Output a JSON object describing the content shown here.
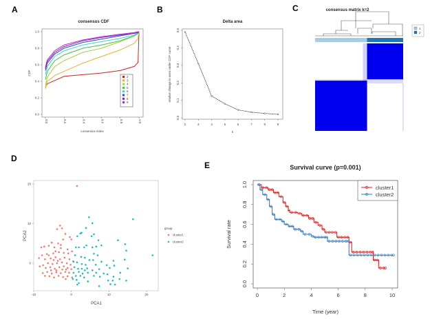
{
  "panel_labels": [
    "A",
    "B",
    "C",
    "D",
    "E"
  ],
  "chart_data": [
    {
      "panel": "A",
      "type": "line",
      "title": "consensus CDF",
      "xlabel": "consensus index",
      "ylabel": "CDF",
      "xlim": [
        0,
        1
      ],
      "ylim": [
        0,
        1
      ],
      "xticks": [
        "0.0",
        "0.2",
        "0.4",
        "0.6",
        "0.8",
        "1.0"
      ],
      "yticks": [
        "0.0",
        "0.2",
        "0.4",
        "0.6",
        "0.8",
        "1.0"
      ],
      "legend_placement": "bottom-right",
      "x": [
        0,
        0.02,
        0.1,
        0.2,
        0.4,
        0.6,
        0.8,
        0.95,
        0.99,
        1.0
      ],
      "series": [
        {
          "name": "2",
          "color": "#cc2222",
          "values": [
            0.33,
            0.37,
            0.41,
            0.46,
            0.48,
            0.5,
            0.53,
            0.58,
            0.63,
            1.0
          ]
        },
        {
          "name": "3",
          "color": "#e8b030",
          "values": [
            0.31,
            0.4,
            0.47,
            0.52,
            0.62,
            0.7,
            0.78,
            0.86,
            0.92,
            1.0
          ]
        },
        {
          "name": "4",
          "color": "#a6d040",
          "values": [
            0.35,
            0.45,
            0.58,
            0.65,
            0.75,
            0.8,
            0.88,
            0.95,
            0.98,
            1.0
          ]
        },
        {
          "name": "5",
          "color": "#40c040",
          "values": [
            0.42,
            0.52,
            0.65,
            0.72,
            0.8,
            0.84,
            0.89,
            0.95,
            0.98,
            1.0
          ]
        },
        {
          "name": "6",
          "color": "#40d0d8",
          "values": [
            0.48,
            0.58,
            0.7,
            0.77,
            0.84,
            0.88,
            0.92,
            0.96,
            0.99,
            1.0
          ]
        },
        {
          "name": "7",
          "color": "#2050c0",
          "values": [
            0.53,
            0.62,
            0.73,
            0.8,
            0.87,
            0.91,
            0.95,
            0.98,
            0.99,
            1.0
          ]
        },
        {
          "name": "8",
          "color": "#7a20d0",
          "values": [
            0.55,
            0.64,
            0.75,
            0.82,
            0.89,
            0.93,
            0.96,
            0.98,
            0.99,
            1.0
          ]
        },
        {
          "name": "9",
          "color": "#c020c0",
          "values": [
            0.57,
            0.66,
            0.77,
            0.84,
            0.9,
            0.94,
            0.97,
            0.99,
            1.0,
            1.0
          ]
        }
      ]
    },
    {
      "panel": "B",
      "type": "line",
      "title": "Delta area",
      "xlabel": "k",
      "ylabel": "relative change in area under CDF curve",
      "xlim": [
        2,
        9
      ],
      "ylim": [
        0,
        0.5
      ],
      "xticks": [
        "2",
        "3",
        "4",
        "5",
        "6",
        "7",
        "8",
        "9"
      ],
      "yticks": [
        "0.0",
        "0.1",
        "0.2",
        "0.3",
        "0.4",
        "0.5"
      ],
      "x": [
        2,
        3,
        4,
        5,
        6,
        7,
        8,
        9
      ],
      "values": [
        0.49,
        0.31,
        0.125,
        0.08,
        0.045,
        0.032,
        0.025,
        0.02
      ]
    },
    {
      "panel": "C",
      "type": "heatmap",
      "title": "consensus matrix k=2",
      "legend": [
        {
          "name": "1",
          "color": "#a6cee3"
        },
        {
          "name": "2",
          "color": "#1f78b4"
        }
      ],
      "cluster_fraction": [
        0.59,
        0.41
      ],
      "fill_color": "#0000ee"
    },
    {
      "panel": "D",
      "type": "scatter",
      "xlabel": "PCA1",
      "ylabel": "PCA2",
      "xlim": [
        -10,
        23
      ],
      "ylim": [
        -7,
        21
      ],
      "xticks": [
        "-10",
        "0",
        "10",
        "20"
      ],
      "yticks": [
        "0",
        "10",
        "20"
      ],
      "legend_title": "group",
      "legend_placement": "right",
      "series": [
        {
          "name": "cluster1",
          "color": "#f07b6f",
          "points": [
            [
              1.5,
              19.5
            ],
            [
              -3,
              9.5
            ],
            [
              -3.8,
              8.6
            ],
            [
              -2.5,
              8.8
            ],
            [
              -1.6,
              7.4
            ],
            [
              -0.4,
              6.6
            ],
            [
              0,
              6
            ],
            [
              -2.2,
              6
            ],
            [
              -3.5,
              5
            ],
            [
              -5.2,
              5.2
            ],
            [
              -6,
              4.4
            ],
            [
              -7.2,
              4.2
            ],
            [
              -8,
              4
            ],
            [
              -4.5,
              4
            ],
            [
              -2.8,
              3.8
            ],
            [
              -1,
              3.5
            ],
            [
              0.2,
              3
            ],
            [
              -0.8,
              2.5
            ],
            [
              -2,
              2.6
            ],
            [
              -3.3,
              2.8
            ],
            [
              -4.8,
              2.5
            ],
            [
              -6.5,
              2.3
            ],
            [
              -7.8,
              2
            ],
            [
              -8.6,
              1.3
            ],
            [
              -7,
              1
            ],
            [
              -5.5,
              1.2
            ],
            [
              -4.2,
              1.5
            ],
            [
              -3,
              1
            ],
            [
              -1.8,
              1.4
            ],
            [
              -0.5,
              1
            ],
            [
              0.5,
              0.5
            ],
            [
              -1.2,
              0
            ],
            [
              -2.5,
              0.2
            ],
            [
              -3.8,
              0
            ],
            [
              -5,
              -0.2
            ],
            [
              -6.2,
              0
            ],
            [
              -7.5,
              -0.5
            ],
            [
              -8.4,
              -0.8
            ],
            [
              -6.8,
              -1.2
            ],
            [
              -5.6,
              -1
            ],
            [
              -4.4,
              -1.4
            ],
            [
              -3.2,
              -1
            ],
            [
              -2,
              -0.8
            ],
            [
              -1,
              -1.2
            ],
            [
              0,
              -1.5
            ],
            [
              -0.6,
              -2.4
            ],
            [
              -1.6,
              -2.2
            ],
            [
              -2.8,
              -2.5
            ],
            [
              -4,
              -2.3
            ],
            [
              -5.2,
              -2.6
            ],
            [
              -6.4,
              -2.2
            ],
            [
              -7.6,
              -2.5
            ],
            [
              -7,
              -3.2
            ],
            [
              -5.8,
              -3.3
            ],
            [
              -4.6,
              -3.6
            ],
            [
              -3.4,
              -3.2
            ],
            [
              -2.2,
              -3.5
            ],
            [
              -1,
              -3.3
            ],
            [
              0.2,
              -3.6
            ],
            [
              -1.5,
              -4
            ],
            [
              -4,
              -1.8
            ],
            [
              -3.6,
              0.6
            ],
            [
              -4.7,
              0.8
            ],
            [
              -2.4,
              -1.6
            ],
            [
              -5.4,
              -1.8
            ],
            [
              -6,
              2
            ],
            [
              -1.4,
              -1.6
            ],
            [
              -0.2,
              -0.4
            ],
            [
              -2.8,
              4.6
            ],
            [
              -4.2,
              3
            ]
          ]
        },
        {
          "name": "cluster2",
          "color": "#17c0c4",
          "points": [
            [
              4.7,
              11.6
            ],
            [
              16.4,
              11.1
            ],
            [
              5.6,
              10.1
            ],
            [
              3.9,
              8.9
            ],
            [
              2.7,
              7.7
            ],
            [
              2.4,
              7.5
            ],
            [
              6,
              7.3
            ],
            [
              1.6,
              6.8
            ],
            [
              5.4,
              6.8
            ],
            [
              7.2,
              5.8
            ],
            [
              12.4,
              5.8
            ],
            [
              4,
              4.5
            ],
            [
              8,
              4.5
            ],
            [
              14.3,
              4.8
            ],
            [
              1.2,
              4
            ],
            [
              2,
              4
            ],
            [
              3.4,
              4
            ],
            [
              6.6,
              4.2
            ],
            [
              5.6,
              4
            ],
            [
              14.6,
              3.2
            ],
            [
              6,
              2.4
            ],
            [
              7,
              2
            ],
            [
              21.6,
              2
            ],
            [
              1,
              2
            ],
            [
              2.6,
              1.6
            ],
            [
              3.6,
              1.4
            ],
            [
              4.8,
              0.8
            ],
            [
              5.8,
              0.8
            ],
            [
              8,
              0.4
            ],
            [
              11.2,
              0.6
            ],
            [
              14.2,
              0.9
            ],
            [
              0.6,
              0.4
            ],
            [
              1.5,
              0.2
            ],
            [
              2.8,
              -0.2
            ],
            [
              3.8,
              -0.4
            ],
            [
              6.5,
              -0.4
            ],
            [
              9.4,
              -0.5
            ],
            [
              11.4,
              -0.6
            ],
            [
              0.8,
              -1
            ],
            [
              1.8,
              -1.4
            ],
            [
              2.8,
              -1.4
            ],
            [
              3.6,
              -1.8
            ],
            [
              4.2,
              -1.3
            ],
            [
              5.6,
              -1.8
            ],
            [
              7.4,
              -1.5
            ],
            [
              10.2,
              -1.2
            ],
            [
              15,
              -1.3
            ],
            [
              0.6,
              -2.4
            ],
            [
              2,
              -2.2
            ],
            [
              3,
              -2.6
            ],
            [
              4.4,
              -2.4
            ],
            [
              6.6,
              -2.4
            ],
            [
              8.6,
              -2.6
            ],
            [
              13,
              -2.4
            ],
            [
              1.2,
              -3.2
            ],
            [
              2.4,
              -3.2
            ],
            [
              3.4,
              -3.6
            ],
            [
              6,
              -3.2
            ],
            [
              7.6,
              -3.4
            ],
            [
              9.6,
              -2.8
            ],
            [
              11.2,
              -3.4
            ],
            [
              0.4,
              -4
            ],
            [
              1.4,
              -4.2
            ],
            [
              4.4,
              -4.6
            ],
            [
              9.8,
              -4.4
            ],
            [
              11,
              -4.4
            ],
            [
              12.8,
              -4
            ],
            [
              14.6,
              -4.4
            ],
            [
              1.6,
              -5.4
            ],
            [
              7.4,
              -5.8
            ],
            [
              10.4,
              -5.3
            ],
            [
              11.6,
              -5.4
            ],
            [
              2,
              -5
            ]
          ]
        }
      ]
    },
    {
      "panel": "E",
      "type": "line",
      "title": "Survival curve (p=0.001)",
      "xlabel": "Time (year)",
      "ylabel": "Survival rate",
      "xlim": [
        0,
        10
      ],
      "ylim": [
        0,
        1
      ],
      "xticks": [
        "0",
        "2",
        "4",
        "6",
        "8",
        "10"
      ],
      "yticks": [
        "0.0",
        "0.2",
        "0.4",
        "0.6",
        "0.8",
        "1.0"
      ],
      "legend_placement": "top-right",
      "series": [
        {
          "name": "cluster1",
          "color": "#e0272a",
          "steps": [
            [
              0,
              1
            ],
            [
              0.3,
              0.97
            ],
            [
              0.8,
              0.95
            ],
            [
              1.2,
              0.92
            ],
            [
              1.6,
              0.88
            ],
            [
              1.9,
              0.82
            ],
            [
              2.1,
              0.78
            ],
            [
              2.3,
              0.74
            ],
            [
              2.4,
              0.72
            ],
            [
              3,
              0.71
            ],
            [
              3.3,
              0.69
            ],
            [
              3.8,
              0.66
            ],
            [
              4.2,
              0.62
            ],
            [
              4.5,
              0.59
            ],
            [
              4.8,
              0.55
            ],
            [
              5,
              0.52
            ],
            [
              5.9,
              0.47
            ],
            [
              6.6,
              0.47
            ],
            [
              6.8,
              0.42
            ],
            [
              7,
              0.32
            ],
            [
              8.5,
              0.32
            ],
            [
              8.6,
              0.24
            ],
            [
              9,
              0.16
            ],
            [
              9.5,
              0.16
            ]
          ]
        },
        {
          "name": "cluster2",
          "color": "#3b7fbf",
          "steps": [
            [
              0,
              1
            ],
            [
              0.2,
              0.95
            ],
            [
              0.4,
              0.9
            ],
            [
              0.7,
              0.85
            ],
            [
              0.9,
              0.78
            ],
            [
              1.1,
              0.7
            ],
            [
              1.3,
              0.65
            ],
            [
              1.8,
              0.63
            ],
            [
              2,
              0.6
            ],
            [
              2.3,
              0.58
            ],
            [
              2.7,
              0.55
            ],
            [
              3.2,
              0.53
            ],
            [
              3.4,
              0.5
            ],
            [
              4,
              0.48
            ],
            [
              4.2,
              0.47
            ],
            [
              5.1,
              0.47
            ],
            [
              5.2,
              0.43
            ],
            [
              6.7,
              0.43
            ],
            [
              6.8,
              0.29
            ],
            [
              10.1,
              0.29
            ]
          ]
        }
      ]
    }
  ]
}
